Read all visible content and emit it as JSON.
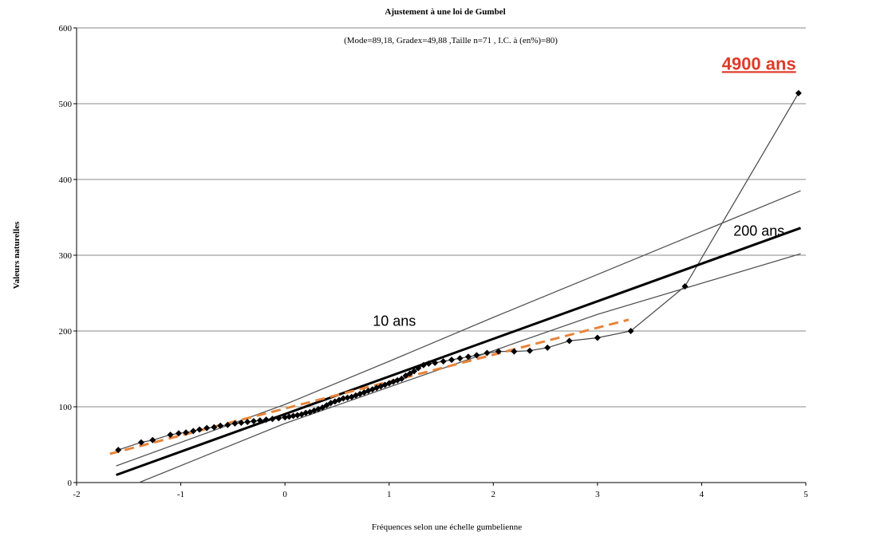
{
  "chart_data": {
    "type": "scatter",
    "title": "Ajustement à une loi de Gumbel",
    "subtitle": "(Mode=89,18, Gradex=49,88 ,Taille n=71 , I.C. à (en%)=80)",
    "xlabel": "Fréquences selon une échelle gumbelienne",
    "ylabel": "Valeurs naturelles",
    "xlim": [
      -2,
      5
    ],
    "ylim": [
      0,
      600
    ],
    "xticks": [
      "-2",
      "-1",
      "0",
      "1",
      "2",
      "3",
      "4",
      "5"
    ],
    "yticks": [
      "0",
      "100",
      "200",
      "300",
      "400",
      "500",
      "600"
    ],
    "grid": "horizontal",
    "series": [
      {
        "role": "observed",
        "marker": "diamond",
        "color": "#000000",
        "points": [
          [
            -1.6,
            43
          ],
          [
            -1.38,
            53
          ],
          [
            -1.27,
            56
          ],
          [
            -1.1,
            63
          ],
          [
            -1.02,
            65
          ],
          [
            -0.95,
            66
          ],
          [
            -0.88,
            68
          ],
          [
            -0.82,
            70
          ],
          [
            -0.75,
            72
          ],
          [
            -0.68,
            73
          ],
          [
            -0.62,
            75
          ],
          [
            -0.55,
            76
          ],
          [
            -0.48,
            78
          ],
          [
            -0.42,
            79
          ],
          [
            -0.36,
            80
          ],
          [
            -0.3,
            81
          ],
          [
            -0.24,
            82
          ],
          [
            -0.18,
            83
          ],
          [
            -0.12,
            84
          ],
          [
            -0.06,
            85
          ],
          [
            0.0,
            86
          ],
          [
            0.04,
            87
          ],
          [
            0.08,
            88
          ],
          [
            0.12,
            89
          ],
          [
            0.16,
            90
          ],
          [
            0.2,
            92
          ],
          [
            0.24,
            93
          ],
          [
            0.28,
            95
          ],
          [
            0.32,
            97
          ],
          [
            0.36,
            99
          ],
          [
            0.4,
            102
          ],
          [
            0.44,
            105
          ],
          [
            0.48,
            107
          ],
          [
            0.52,
            109
          ],
          [
            0.56,
            111
          ],
          [
            0.6,
            112
          ],
          [
            0.64,
            113
          ],
          [
            0.68,
            115
          ],
          [
            0.72,
            117
          ],
          [
            0.76,
            119
          ],
          [
            0.8,
            121
          ],
          [
            0.84,
            123
          ],
          [
            0.88,
            125
          ],
          [
            0.92,
            127
          ],
          [
            0.96,
            129
          ],
          [
            1.0,
            131
          ],
          [
            1.04,
            133
          ],
          [
            1.08,
            135
          ],
          [
            1.12,
            137
          ],
          [
            1.16,
            141
          ],
          [
            1.2,
            144
          ],
          [
            1.24,
            147
          ],
          [
            1.28,
            151
          ],
          [
            1.33,
            155
          ],
          [
            1.38,
            157
          ],
          [
            1.44,
            158
          ],
          [
            1.52,
            160
          ],
          [
            1.6,
            162
          ],
          [
            1.68,
            164
          ],
          [
            1.76,
            166
          ],
          [
            1.84,
            168
          ],
          [
            1.94,
            171
          ],
          [
            2.05,
            173
          ],
          [
            2.2,
            173
          ],
          [
            2.35,
            174
          ],
          [
            2.52,
            178
          ],
          [
            2.73,
            187
          ],
          [
            3.0,
            191
          ],
          [
            3.32,
            200
          ],
          [
            3.84,
            259
          ],
          [
            4.93,
            514
          ]
        ]
      },
      {
        "role": "fit",
        "color": "#000000",
        "points": [
          [
            -1.62,
            10
          ],
          [
            4.95,
            336
          ]
        ]
      },
      {
        "role": "upper-confidence",
        "color": "#555555",
        "points": [
          [
            -1.62,
            22
          ],
          [
            0.0,
            103
          ],
          [
            1.0,
            160
          ],
          [
            2.0,
            218
          ],
          [
            4.95,
            385
          ]
        ]
      },
      {
        "role": "lower-confidence",
        "color": "#555555",
        "points": [
          [
            -1.4,
            0
          ],
          [
            0.0,
            78
          ],
          [
            1.0,
            126
          ],
          [
            2.0,
            174
          ],
          [
            3.0,
            222
          ],
          [
            4.95,
            302
          ]
        ]
      },
      {
        "role": "trend",
        "color": "#E8833A",
        "dashed": true,
        "points": [
          [
            -1.68,
            38
          ],
          [
            3.3,
            215
          ]
        ]
      }
    ],
    "annotations": [
      {
        "text": "10 ans",
        "x": 1.05,
        "y": 207
      },
      {
        "text": "200 ans",
        "x": 4.55,
        "y": 326
      },
      {
        "text": "4900 ans",
        "x": 4.55,
        "y": 545,
        "color": "#E03A2A",
        "bold": true,
        "underline": true
      }
    ]
  }
}
